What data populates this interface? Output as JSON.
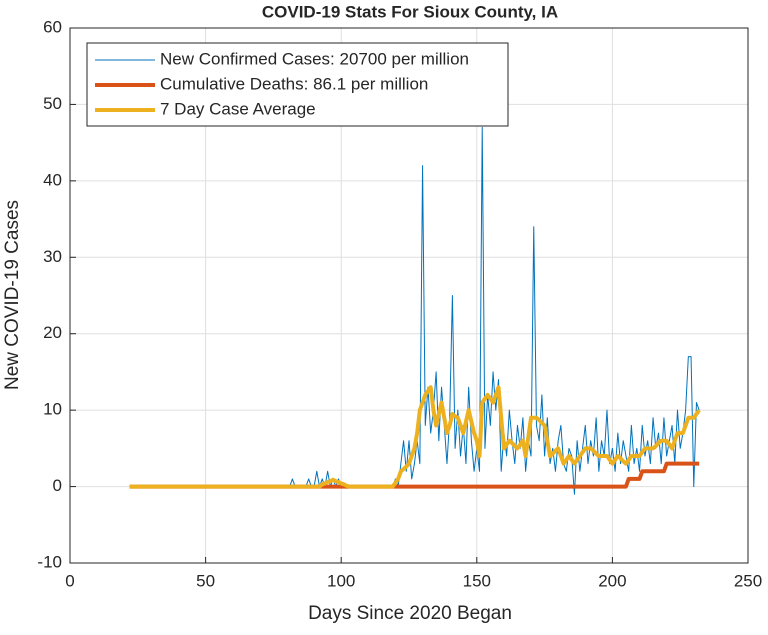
{
  "chart_data": {
    "type": "line",
    "title": "COVID-19 Stats For Sioux County, IA",
    "xlabel": "Days Since 2020 Began",
    "ylabel": "New COVID-19 Cases",
    "xlim": [
      0,
      250
    ],
    "xticks": [
      0,
      50,
      100,
      150,
      200,
      250
    ],
    "ylim": [
      -10,
      60
    ],
    "yticks": [
      -10,
      0,
      10,
      20,
      30,
      40,
      50,
      60
    ],
    "grid": true,
    "legend": "northwest",
    "x": [
      22,
      80,
      81,
      82,
      83,
      84,
      85,
      86,
      87,
      88,
      89,
      90,
      91,
      92,
      93,
      94,
      95,
      96,
      97,
      98,
      99,
      100,
      101,
      102,
      103,
      104,
      105,
      106,
      107,
      108,
      109,
      110,
      111,
      112,
      113,
      114,
      115,
      116,
      117,
      118,
      119,
      120,
      121,
      122,
      123,
      124,
      125,
      126,
      127,
      128,
      129,
      130,
      131,
      132,
      133,
      134,
      135,
      136,
      137,
      138,
      139,
      140,
      141,
      142,
      143,
      144,
      145,
      146,
      147,
      148,
      149,
      150,
      151,
      152,
      153,
      154,
      155,
      156,
      157,
      158,
      159,
      160,
      161,
      162,
      163,
      164,
      165,
      166,
      167,
      168,
      169,
      170,
      171,
      172,
      173,
      174,
      175,
      176,
      177,
      178,
      179,
      180,
      181,
      182,
      183,
      184,
      185,
      186,
      187,
      188,
      189,
      190,
      191,
      192,
      193,
      194,
      195,
      196,
      197,
      198,
      199,
      200,
      201,
      202,
      203,
      204,
      205,
      206,
      207,
      208,
      209,
      210,
      211,
      212,
      213,
      214,
      215,
      216,
      217,
      218,
      219,
      220,
      221,
      222,
      223,
      224,
      225,
      226,
      227,
      228,
      229,
      230,
      231,
      232
    ],
    "series": [
      {
        "name": "New Confirmed Cases: 20700 per million",
        "color": "#0072bd",
        "width": 1,
        "values": [
          0,
          0,
          0,
          1,
          0,
          0,
          0,
          0,
          0,
          1,
          0,
          0,
          2,
          0,
          1,
          0,
          2,
          0,
          1,
          0,
          1,
          0,
          0,
          0,
          0,
          0,
          0,
          0,
          0,
          0,
          0,
          0,
          0,
          0,
          0,
          0,
          0,
          0,
          0,
          0,
          0,
          1,
          0,
          3,
          6,
          2,
          6,
          1,
          3,
          6,
          3,
          42,
          8,
          13,
          7,
          10,
          15,
          6,
          13,
          8,
          3,
          9,
          25,
          5,
          10,
          4,
          8,
          3,
          13,
          6,
          2,
          5,
          2,
          47,
          5,
          12,
          8,
          15,
          10,
          14,
          2,
          7,
          4,
          10,
          6,
          3,
          8,
          5,
          9,
          2,
          6,
          4,
          34,
          8,
          6,
          12,
          4,
          9,
          3,
          5,
          2,
          6,
          8,
          3,
          2,
          5,
          4,
          -1,
          6,
          2,
          5,
          8,
          3,
          6,
          4,
          9,
          2,
          6,
          4,
          10,
          3,
          5,
          2,
          7,
          3,
          6,
          4,
          2,
          8,
          3,
          5,
          2,
          8,
          4,
          6,
          3,
          9,
          5,
          7,
          3,
          9,
          4,
          6,
          8,
          3,
          10,
          5,
          7,
          10,
          17,
          17,
          0,
          11,
          10
        ]
      },
      {
        "name": "Cumulative Deaths: 86.1 per million",
        "color": "#d95319",
        "width": 4,
        "values": [
          0,
          0,
          0,
          0,
          0,
          0,
          0,
          0,
          0,
          0,
          0,
          0,
          0,
          0,
          0,
          0,
          0,
          0,
          0,
          0,
          0,
          0,
          0,
          0,
          0,
          0,
          0,
          0,
          0,
          0,
          0,
          0,
          0,
          0,
          0,
          0,
          0,
          0,
          0,
          0,
          0,
          0,
          0,
          0,
          0,
          0,
          0,
          0,
          0,
          0,
          0,
          0,
          0,
          0,
          0,
          0,
          0,
          0,
          0,
          0,
          0,
          0,
          0,
          0,
          0,
          0,
          0,
          0,
          0,
          0,
          0,
          0,
          0,
          0,
          0,
          0,
          0,
          0,
          0,
          0,
          0,
          0,
          0,
          0,
          0,
          0,
          0,
          0,
          0,
          0,
          0,
          0,
          0,
          0,
          0,
          0,
          0,
          0,
          0,
          0,
          0,
          0,
          0,
          0,
          0,
          0,
          0,
          0,
          0,
          0,
          0,
          0,
          0,
          0,
          0,
          0,
          0,
          0,
          0,
          0,
          0,
          0,
          0,
          0,
          0,
          0,
          0,
          1,
          1,
          1,
          1,
          1,
          2,
          2,
          2,
          2,
          2,
          2,
          2,
          2,
          2,
          3,
          3,
          3,
          3,
          3,
          3,
          3,
          3,
          3,
          3,
          3,
          3,
          3
        ]
      },
      {
        "name": "7 Day Case Average",
        "color": "#edb120",
        "width": 4,
        "values": [
          0,
          0,
          0,
          0,
          0,
          0,
          0,
          0,
          0,
          0,
          0,
          0,
          0,
          0,
          0.3,
          0.4,
          0.6,
          0.7,
          0.9,
          0.7,
          0.6,
          0.4,
          0.3,
          0.1,
          0,
          0,
          0,
          0,
          0,
          0,
          0,
          0,
          0,
          0,
          0,
          0,
          0,
          0,
          0,
          0,
          0,
          0.5,
          1,
          2,
          2.3,
          2.6,
          3,
          4,
          5,
          7,
          10,
          11,
          12,
          12.5,
          13,
          10,
          8,
          9.5,
          11,
          9,
          7,
          8,
          9.5,
          9.2,
          9,
          8,
          7,
          8.5,
          10,
          8.5,
          7,
          6,
          4,
          11,
          11.5,
          12,
          11.5,
          11,
          12,
          13,
          9,
          5,
          5.5,
          6,
          5.7,
          5.3,
          5,
          5.5,
          6,
          4,
          6.5,
          9,
          9,
          9,
          8.7,
          8.3,
          8,
          6,
          4,
          4.3,
          4.7,
          5,
          4,
          3,
          3.5,
          4,
          3.5,
          3,
          3.5,
          4,
          4.5,
          5,
          5,
          5,
          4.7,
          4.3,
          4,
          4,
          4,
          4,
          3.5,
          3,
          3.5,
          4,
          3.7,
          3.3,
          3,
          3.5,
          4,
          4,
          4,
          4,
          4.5,
          5,
          5,
          5,
          5,
          5.3,
          5.7,
          6,
          6,
          6,
          5.5,
          5,
          6,
          7,
          7,
          7,
          8,
          9,
          9,
          9,
          9.5,
          10
        ]
      }
    ]
  }
}
